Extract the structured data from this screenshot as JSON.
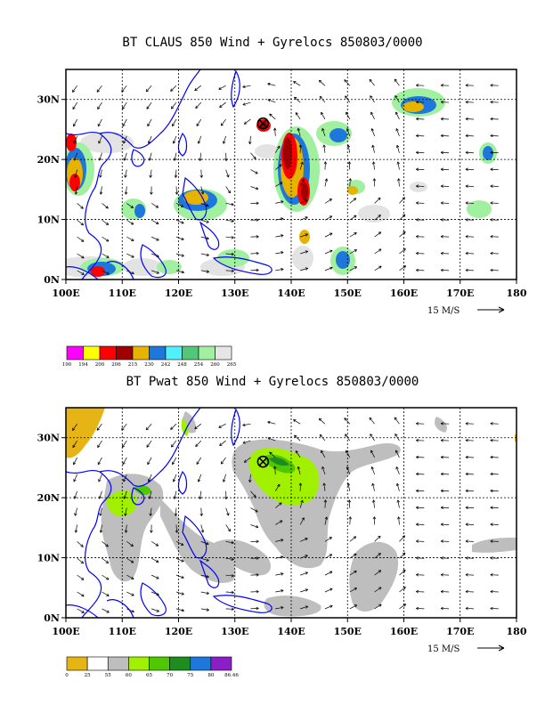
{
  "top": {
    "title": "BT CLAUS 850 Wind + Gyrelocs 850803/0000",
    "lon_labels": [
      "100E",
      "110E",
      "120E",
      "130E",
      "140E",
      "150E",
      "160E",
      "170E",
      "180"
    ],
    "lat_labels": [
      "30N",
      "20N",
      "10N",
      "0N"
    ],
    "ref_vector": "15 M/S",
    "colorbar": {
      "labels": [
        "190",
        "194",
        "200",
        "206",
        "215",
        "230",
        "242",
        "248",
        "254",
        "260",
        "265"
      ],
      "colors": [
        "#ff00ff",
        "#ffff00",
        "#ff0000",
        "#a00000",
        "#e6b400",
        "#1e78dc",
        "#50f0ff",
        "#50c878",
        "#a0f0a0",
        "#e6e6e6"
      ]
    }
  },
  "bottom": {
    "title": "BT Pwat 850 Wind + Gyrelocs 850803/0000",
    "lon_labels": [
      "100E",
      "110E",
      "120E",
      "130E",
      "140E",
      "150E",
      "160E",
      "170E",
      "180"
    ],
    "lat_labels": [
      "30N",
      "20N",
      "10N",
      "0N"
    ],
    "ref_vector": "15 M/S",
    "colorbar": {
      "labels": [
        "0",
        "25",
        "55",
        "60",
        "65",
        "70",
        "75",
        "80",
        "86.46"
      ],
      "colors": [
        "#e6b414",
        "#ffffff",
        "#bebebe",
        "#a0f000",
        "#50c800",
        "#1e8c1e",
        "#1e78dc",
        "#8c1ec8"
      ]
    }
  },
  "map": {
    "lon_range": [
      100,
      180
    ],
    "lat_range": [
      0,
      35
    ],
    "gyre_location": {
      "lon": 135,
      "lat": 26
    }
  },
  "colors": {
    "coast": "#0000ff",
    "grid": "#000000"
  }
}
